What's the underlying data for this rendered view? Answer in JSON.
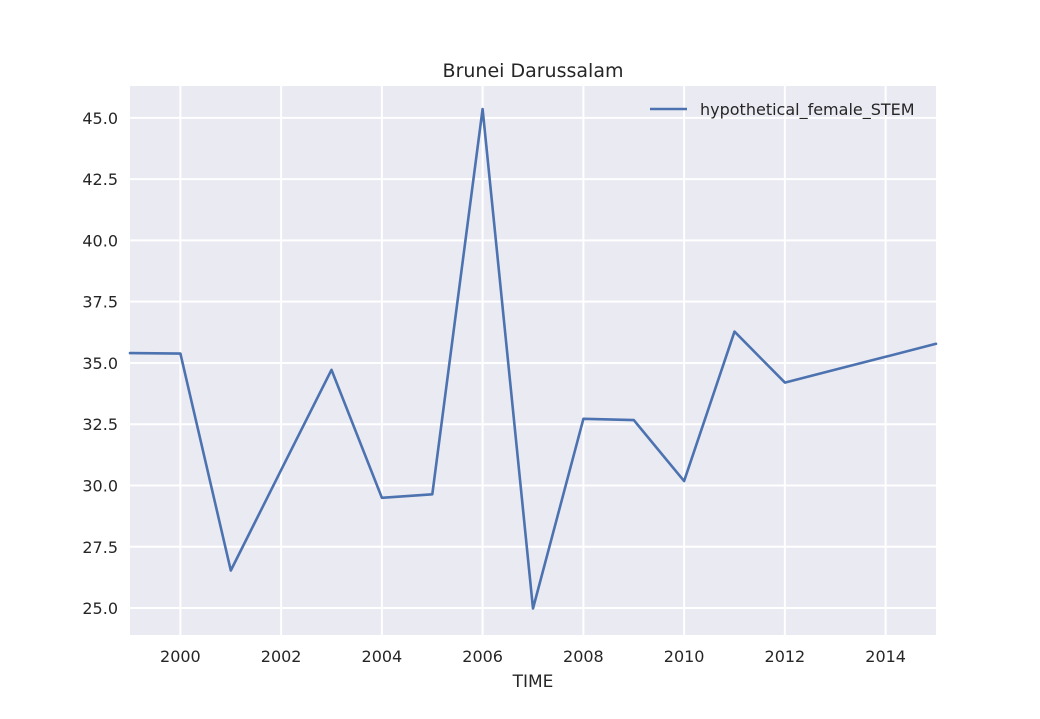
{
  "chart_data": {
    "type": "line",
    "title": "Brunei Darussalam",
    "xlabel": "TIME",
    "ylabel": "",
    "xlim": [
      1999,
      2015
    ],
    "ylim": [
      23.9,
      46.3
    ],
    "xticks": [
      2000,
      2002,
      2004,
      2006,
      2008,
      2010,
      2012,
      2014
    ],
    "yticks": [
      25.0,
      27.5,
      30.0,
      32.5,
      35.0,
      37.5,
      40.0,
      42.5,
      45.0
    ],
    "grid": true,
    "legend": "top-right",
    "series": [
      {
        "name": "hypothetical_female_STEM",
        "color": "#4c72b0",
        "x": [
          1999,
          2000,
          2001,
          2002,
          2003,
          2004,
          2005,
          2006,
          2007,
          2008,
          2009,
          2010,
          2011,
          2012,
          2013,
          2014,
          2015
        ],
        "y": [
          35.4,
          35.38,
          26.53,
          30.63,
          34.72,
          29.5,
          29.64,
          45.36,
          24.98,
          32.72,
          32.67,
          30.18,
          36.28,
          34.2,
          34.73,
          35.25,
          35.78
        ]
      }
    ]
  }
}
